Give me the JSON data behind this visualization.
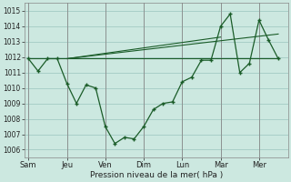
{
  "background_color": "#cce8e0",
  "grid_color": "#a8cfc8",
  "line_color": "#1a5c28",
  "xlabel": "Pression niveau de la mer( hPa )",
  "ylim": [
    1005.5,
    1015.5
  ],
  "yticks": [
    1006,
    1007,
    1008,
    1009,
    1010,
    1011,
    1012,
    1013,
    1014,
    1015
  ],
  "day_labels": [
    "Sam",
    "Jeu",
    "Ven",
    "Dim",
    "Lun",
    "Mar",
    "Mer"
  ],
  "day_positions": [
    0,
    2,
    4,
    6,
    8,
    10,
    12
  ],
  "xlim": [
    -0.2,
    13.5
  ],
  "series1_x": [
    0,
    0.5,
    1.0,
    1.5,
    2.0,
    2.5,
    3.0,
    3.5,
    4.0,
    4.5,
    5.0,
    5.5,
    6.0,
    6.5,
    7.0,
    7.5,
    8.0,
    8.5,
    9.0,
    9.5,
    10.0,
    10.5,
    11.0,
    11.5,
    12.0,
    12.5,
    13.0
  ],
  "series1_y": [
    1011.9,
    1011.1,
    1011.9,
    1011.9,
    1010.3,
    1009.0,
    1010.2,
    1010.0,
    1007.5,
    1006.4,
    1006.8,
    1006.7,
    1007.5,
    1008.6,
    1009.0,
    1009.1,
    1010.4,
    1010.7,
    1011.8,
    1011.8,
    1014.0,
    1014.8,
    1011.0,
    1011.6,
    1014.4,
    1013.1,
    1011.9
  ],
  "series2_x": [
    0,
    13.0
  ],
  "series2_y": [
    1011.9,
    1011.9
  ],
  "series3_x": [
    2.0,
    13.0
  ],
  "series3_y": [
    1011.9,
    1013.5
  ],
  "series4_x": [
    2.0,
    10.0
  ],
  "series4_y": [
    1011.9,
    1013.3
  ]
}
